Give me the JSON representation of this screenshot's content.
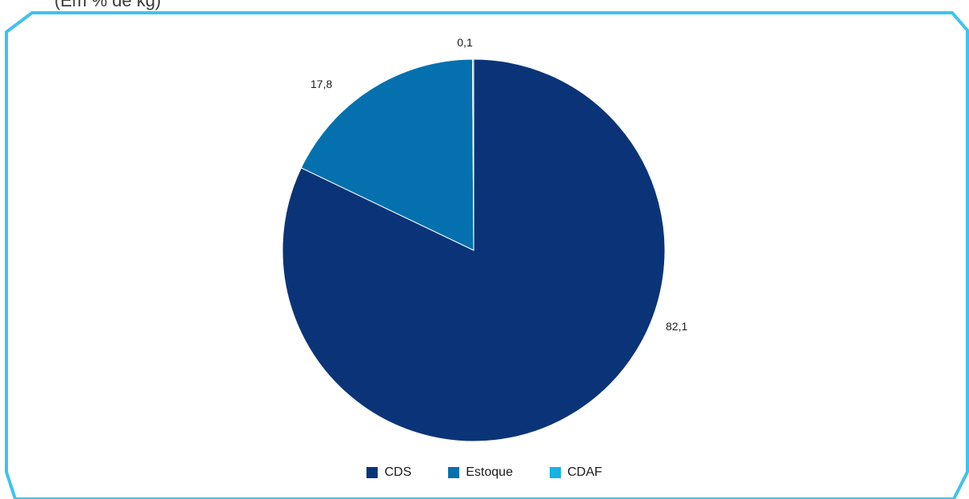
{
  "top_caption": "(Em % de kg)",
  "colors": {
    "frame": "#3EC3EE",
    "cds": "#0B3478",
    "estoque": "#0471AE",
    "cdaf": "#18B2E3"
  },
  "chart_data": {
    "type": "pie",
    "title": "",
    "categories": [
      "CDS",
      "Estoque",
      "CDAF"
    ],
    "values": [
      82.1,
      17.8,
      0.1
    ],
    "value_labels": [
      "82,1",
      "17,8",
      "0,1"
    ],
    "colors": [
      "#0B3478",
      "#0471AE",
      "#18B2E3"
    ],
    "start_angle": "12 o'clock",
    "direction": "clockwise",
    "legend": {
      "position": "bottom",
      "items": [
        "CDS",
        "Estoque",
        "CDAF"
      ]
    }
  }
}
